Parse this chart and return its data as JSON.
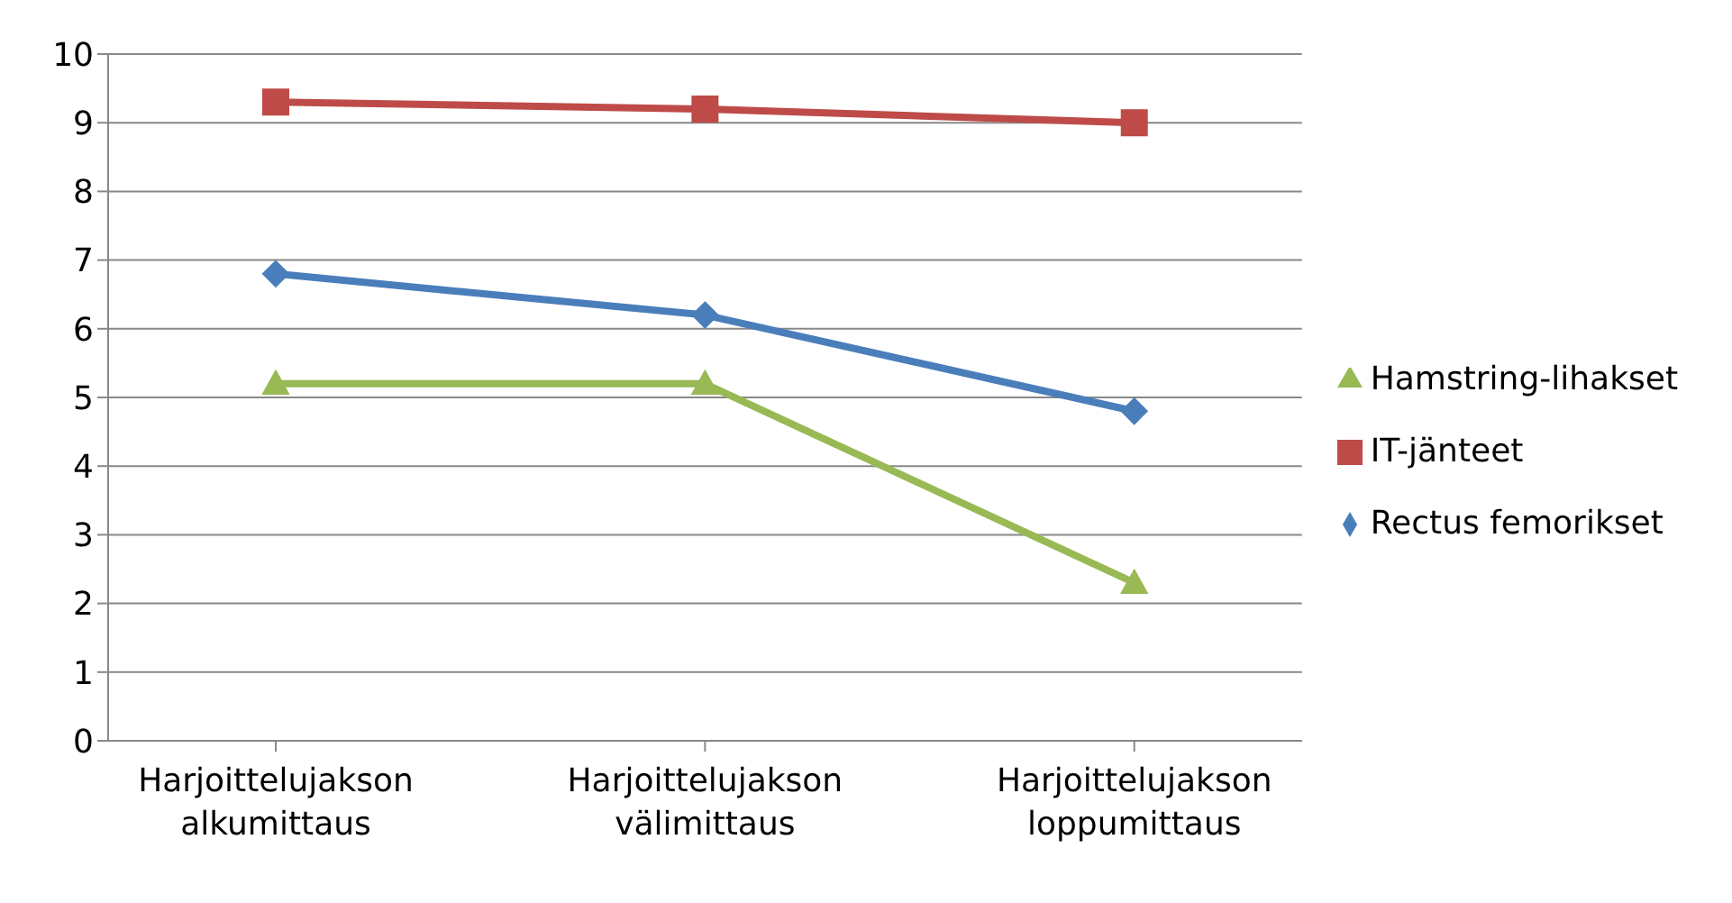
{
  "chart_data": {
    "type": "line",
    "categories": [
      "Harjoittelujakson alkumittaus",
      "Harjoittelujakson välimittaus",
      "Harjoittelujakson loppumittaus"
    ],
    "series": [
      {
        "name": "Rectus femorikset",
        "color": "#4a7ebb",
        "values": [
          6.8,
          6.2,
          4.8
        ],
        "marker": "diamond"
      },
      {
        "name": "IT-jänteet",
        "color": "#be4b48",
        "values": [
          9.3,
          9.2,
          9.0
        ],
        "marker": "square"
      },
      {
        "name": "Hamstring-lihakset",
        "color": "#98b954",
        "values": [
          5.2,
          5.2,
          2.3
        ],
        "marker": "triangle"
      }
    ],
    "ylim": [
      0,
      10
    ],
    "yticks": [
      0,
      1,
      2,
      3,
      4,
      5,
      6,
      7,
      8,
      9,
      10
    ],
    "grid": "y",
    "legend": "right",
    "line_style": "solid"
  }
}
